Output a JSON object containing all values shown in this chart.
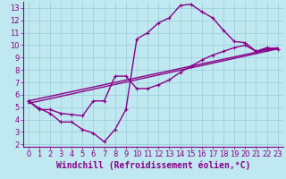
{
  "bg_color": "#c0e8f0",
  "line_color": "#880088",
  "grid_color": "#99ccd8",
  "xlabel": "Windchill (Refroidissement éolien,°C)",
  "xlim": [
    -0.5,
    23.5
  ],
  "ylim": [
    1.8,
    13.5
  ],
  "xticks": [
    0,
    1,
    2,
    3,
    4,
    5,
    6,
    7,
    8,
    9,
    10,
    11,
    12,
    13,
    14,
    15,
    16,
    17,
    18,
    19,
    20,
    21,
    22,
    23
  ],
  "yticks": [
    2,
    3,
    4,
    5,
    6,
    7,
    8,
    9,
    10,
    11,
    12,
    13
  ],
  "curve1_x": [
    0,
    1,
    2,
    3,
    4,
    5,
    6,
    7,
    8,
    9,
    10,
    11,
    12,
    13,
    14,
    15,
    16,
    17,
    18,
    19,
    20,
    21,
    22,
    23
  ],
  "curve1_y": [
    5.5,
    4.9,
    4.5,
    3.8,
    3.8,
    3.2,
    2.9,
    2.2,
    3.2,
    4.8,
    10.5,
    11.0,
    11.8,
    12.2,
    13.2,
    13.3,
    12.7,
    12.2,
    11.2,
    10.3,
    10.2,
    9.5,
    9.8,
    9.7
  ],
  "curve2_x": [
    0,
    1,
    2,
    3,
    4,
    5,
    6,
    7,
    8,
    9,
    10,
    11,
    12,
    13,
    14,
    15,
    16,
    17,
    18,
    19,
    20,
    21,
    22,
    23
  ],
  "curve2_y": [
    5.5,
    4.8,
    4.8,
    4.5,
    4.4,
    4.3,
    5.5,
    5.5,
    7.5,
    7.5,
    6.5,
    6.5,
    6.8,
    7.2,
    7.8,
    8.3,
    8.8,
    9.2,
    9.5,
    9.8,
    10.0,
    9.5,
    9.7,
    9.7
  ],
  "curve3_x": [
    0,
    23
  ],
  "curve3_y": [
    5.3,
    9.7
  ],
  "curve4_x": [
    0,
    23
  ],
  "curve4_y": [
    5.5,
    9.8
  ],
  "line_width": 1.0,
  "marker": "+",
  "marker_size": 3,
  "font_family": "monospace",
  "tick_fontsize": 6,
  "label_fontsize": 7
}
